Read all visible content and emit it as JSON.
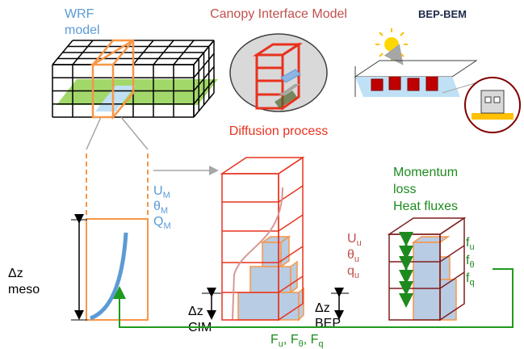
{
  "wrf": {
    "title": [
      "WRF",
      "model"
    ]
  },
  "cim": {
    "title": "Canopy Interface Model"
  },
  "bep": {
    "title": "BEP-BEM"
  },
  "diffusion": {
    "label": "Diffusion process"
  },
  "meso_vars": [
    {
      "symbol": "U",
      "sub": "M"
    },
    {
      "symbol": "θ",
      "sub": "M"
    },
    {
      "symbol": "Q",
      "sub": "M"
    }
  ],
  "urban_vars": [
    {
      "symbol": "U",
      "sub": "u"
    },
    {
      "symbol": "θ",
      "sub": "u"
    },
    {
      "symbol": "q",
      "sub": "u"
    }
  ],
  "tendencies": [
    {
      "symbol": "f",
      "sub": "u"
    },
    {
      "symbol": "f",
      "sub": "θ"
    },
    {
      "symbol": "f",
      "sub": "q"
    }
  ],
  "fluxes": [
    {
      "symbol": "F",
      "sub": "u",
      "suffix": ","
    },
    {
      "symbol": "F",
      "sub": "θ",
      "suffix": ","
    },
    {
      "symbol": "F",
      "sub": "q"
    }
  ],
  "momentum": {
    "lines": [
      "Momentum",
      "loss",
      "Heat fluxes"
    ]
  },
  "dz_meso": [
    "Δz",
    "meso"
  ],
  "dz_cim": [
    "Δz",
    "CIM"
  ],
  "dz_bep": [
    "Δz",
    "BEP"
  ]
}
